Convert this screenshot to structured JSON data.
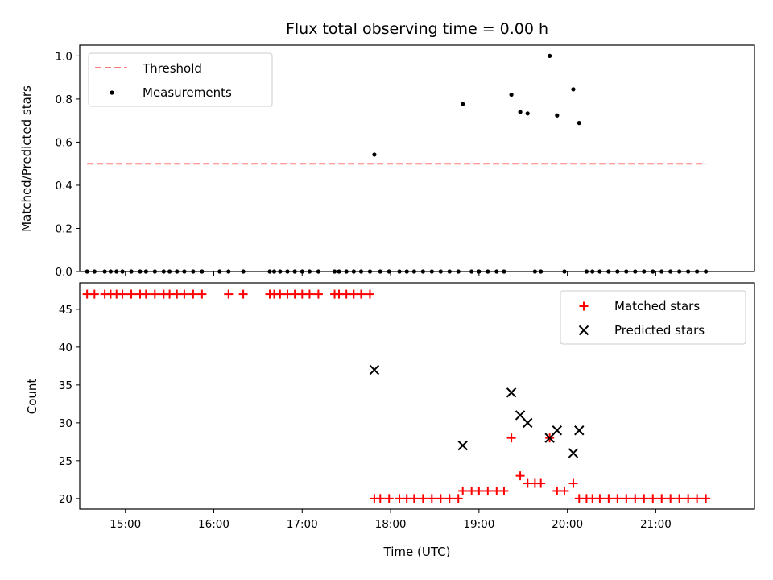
{
  "chart_data": [
    {
      "type": "scatter",
      "title": "Flux total observing time = 0.00 h",
      "ylabel": "Matched/Predicted stars",
      "xlabel": "",
      "ylim": [
        0.0,
        1.05
      ],
      "xlim": [
        "14:29",
        "22:07"
      ],
      "yticks": [
        "0.0",
        "0.2",
        "0.4",
        "0.6",
        "0.8",
        "1.0"
      ],
      "grid": false,
      "legend_position": "top-left",
      "threshold": {
        "name": "Threshold",
        "value": 0.5,
        "x_start": "14:34",
        "x_end": "21:34",
        "color": "#ff7f7f",
        "style": "dashed"
      },
      "series": [
        {
          "name": "Measurements",
          "color": "#000000",
          "points": [
            [
              "14:34",
              0
            ],
            [
              "14:39",
              0
            ],
            [
              "14:46",
              0
            ],
            [
              "14:50",
              0
            ],
            [
              "14:54",
              0
            ],
            [
              "14:58",
              0
            ],
            [
              "15:04",
              0
            ],
            [
              "15:10",
              0
            ],
            [
              "15:14",
              0
            ],
            [
              "15:20",
              0
            ],
            [
              "15:26",
              0
            ],
            [
              "15:30",
              0
            ],
            [
              "15:35",
              0
            ],
            [
              "15:40",
              0
            ],
            [
              "15:46",
              0
            ],
            [
              "15:52",
              0
            ],
            [
              "16:04",
              0
            ],
            [
              "16:10",
              0
            ],
            [
              "16:20",
              0
            ],
            [
              "16:38",
              0
            ],
            [
              "16:41",
              0
            ],
            [
              "16:45",
              0
            ],
            [
              "16:50",
              0
            ],
            [
              "16:55",
              0
            ],
            [
              "17:00",
              0
            ],
            [
              "17:05",
              0
            ],
            [
              "17:11",
              0
            ],
            [
              "17:22",
              0
            ],
            [
              "17:25",
              0
            ],
            [
              "17:30",
              0
            ],
            [
              "17:35",
              0
            ],
            [
              "17:40",
              0
            ],
            [
              "17:46",
              0
            ],
            [
              "17:49",
              0.542
            ],
            [
              "17:53",
              0
            ],
            [
              "17:59",
              0
            ],
            [
              "18:06",
              0
            ],
            [
              "18:11",
              0
            ],
            [
              "18:16",
              0
            ],
            [
              "18:22",
              0
            ],
            [
              "18:28",
              0
            ],
            [
              "18:34",
              0
            ],
            [
              "18:40",
              0
            ],
            [
              "18:46",
              0
            ],
            [
              "18:49",
              0.777
            ],
            [
              "18:55",
              0
            ],
            [
              "19:00",
              0
            ],
            [
              "19:06",
              0
            ],
            [
              "19:12",
              0
            ],
            [
              "19:17",
              0
            ],
            [
              "19:22",
              0.82
            ],
            [
              "19:28",
              0.74
            ],
            [
              "19:33",
              0.733
            ],
            [
              "19:38",
              0
            ],
            [
              "19:42",
              0
            ],
            [
              "19:48",
              1.0
            ],
            [
              "19:53",
              0.724
            ],
            [
              "19:58",
              0
            ],
            [
              "20:04",
              0.845
            ],
            [
              "20:08",
              0.689
            ],
            [
              "20:13",
              0
            ],
            [
              "20:17",
              0
            ],
            [
              "20:22",
              0
            ],
            [
              "20:28",
              0
            ],
            [
              "20:34",
              0
            ],
            [
              "20:40",
              0
            ],
            [
              "20:46",
              0
            ],
            [
              "20:52",
              0
            ],
            [
              "20:58",
              0
            ],
            [
              "21:04",
              0
            ],
            [
              "21:10",
              0
            ],
            [
              "21:16",
              0
            ],
            [
              "21:22",
              0
            ],
            [
              "21:28",
              0
            ],
            [
              "21:34",
              0
            ]
          ]
        }
      ]
    },
    {
      "type": "scatter",
      "title": "",
      "ylabel": "Count",
      "xlabel": "Time (UTC)",
      "ylim": [
        18.6,
        48.5
      ],
      "xlim": [
        "14:29",
        "22:07"
      ],
      "yticks": [
        "20",
        "25",
        "30",
        "35",
        "40",
        "45"
      ],
      "xticks": [
        "15:00",
        "16:00",
        "17:00",
        "18:00",
        "19:00",
        "20:00",
        "21:00"
      ],
      "grid": false,
      "legend_position": "top-right",
      "series": [
        {
          "name": "Matched stars",
          "marker": "plus",
          "color": "#ff0000",
          "points": [
            [
              "14:34",
              47
            ],
            [
              "14:39",
              47
            ],
            [
              "14:46",
              47
            ],
            [
              "14:50",
              47
            ],
            [
              "14:54",
              47
            ],
            [
              "14:58",
              47
            ],
            [
              "15:04",
              47
            ],
            [
              "15:10",
              47
            ],
            [
              "15:14",
              47
            ],
            [
              "15:20",
              47
            ],
            [
              "15:26",
              47
            ],
            [
              "15:30",
              47
            ],
            [
              "15:35",
              47
            ],
            [
              "15:40",
              47
            ],
            [
              "15:46",
              47
            ],
            [
              "15:52",
              47
            ],
            [
              "16:10",
              47
            ],
            [
              "16:20",
              47
            ],
            [
              "16:38",
              47
            ],
            [
              "16:41",
              47
            ],
            [
              "16:45",
              47
            ],
            [
              "16:50",
              47
            ],
            [
              "16:55",
              47
            ],
            [
              "17:00",
              47
            ],
            [
              "17:05",
              47
            ],
            [
              "17:11",
              47
            ],
            [
              "17:22",
              47
            ],
            [
              "17:25",
              47
            ],
            [
              "17:30",
              47
            ],
            [
              "17:35",
              47
            ],
            [
              "17:40",
              47
            ],
            [
              "17:46",
              47
            ],
            [
              "17:49",
              20
            ],
            [
              "17:53",
              20
            ],
            [
              "17:59",
              20
            ],
            [
              "18:06",
              20
            ],
            [
              "18:11",
              20
            ],
            [
              "18:16",
              20
            ],
            [
              "18:22",
              20
            ],
            [
              "18:28",
              20
            ],
            [
              "18:34",
              20
            ],
            [
              "18:40",
              20
            ],
            [
              "18:46",
              20
            ],
            [
              "18:49",
              21
            ],
            [
              "18:55",
              21
            ],
            [
              "19:00",
              21
            ],
            [
              "19:06",
              21
            ],
            [
              "19:12",
              21
            ],
            [
              "19:17",
              21
            ],
            [
              "19:22",
              28
            ],
            [
              "19:28",
              23
            ],
            [
              "19:33",
              22
            ],
            [
              "19:38",
              22
            ],
            [
              "19:42",
              22
            ],
            [
              "19:48",
              28
            ],
            [
              "19:53",
              21
            ],
            [
              "19:58",
              21
            ],
            [
              "20:04",
              22
            ],
            [
              "20:08",
              20
            ],
            [
              "20:13",
              20
            ],
            [
              "20:17",
              20
            ],
            [
              "20:22",
              20
            ],
            [
              "20:28",
              20
            ],
            [
              "20:34",
              20
            ],
            [
              "20:40",
              20
            ],
            [
              "20:46",
              20
            ],
            [
              "20:52",
              20
            ],
            [
              "20:58",
              20
            ],
            [
              "21:04",
              20
            ],
            [
              "21:10",
              20
            ],
            [
              "21:16",
              20
            ],
            [
              "21:22",
              20
            ],
            [
              "21:28",
              20
            ],
            [
              "21:34",
              20
            ]
          ]
        },
        {
          "name": "Predicted stars",
          "marker": "x",
          "color": "#000000",
          "points": [
            [
              "17:49",
              37
            ],
            [
              "18:49",
              27
            ],
            [
              "19:22",
              34
            ],
            [
              "19:28",
              31
            ],
            [
              "19:33",
              30
            ],
            [
              "19:48",
              28
            ],
            [
              "19:53",
              29
            ],
            [
              "20:04",
              26
            ],
            [
              "20:08",
              29
            ]
          ]
        }
      ]
    }
  ]
}
